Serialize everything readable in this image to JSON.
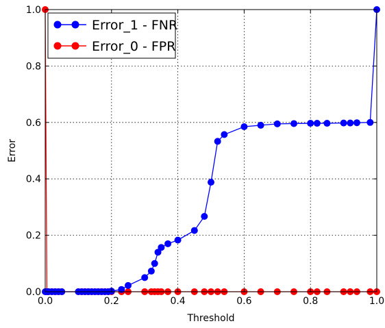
{
  "chart_data": {
    "type": "line",
    "title": "",
    "xlabel": "Threshold",
    "ylabel": "Error",
    "xlim": [
      0.0,
      1.0
    ],
    "ylim": [
      0.0,
      1.0
    ],
    "x_ticks": [
      "0.0",
      "0.2",
      "0.4",
      "0.6",
      "0.8",
      "1.0"
    ],
    "y_ticks": [
      "0.0",
      "0.2",
      "0.4",
      "0.6",
      "0.8",
      "1.0"
    ],
    "grid": true,
    "legend_position": "top-left",
    "series": [
      {
        "name": "Error_1 - FNR",
        "color": "#0000ff",
        "points": [
          [
            0.0,
            0.0
          ],
          [
            0.005,
            0.0
          ],
          [
            0.01,
            0.0
          ],
          [
            0.02,
            0.0
          ],
          [
            0.03,
            0.0
          ],
          [
            0.04,
            0.0
          ],
          [
            0.05,
            0.0
          ],
          [
            0.1,
            0.0
          ],
          [
            0.11,
            0.0
          ],
          [
            0.12,
            0.0
          ],
          [
            0.13,
            0.0
          ],
          [
            0.14,
            0.0
          ],
          [
            0.15,
            0.0
          ],
          [
            0.16,
            0.0
          ],
          [
            0.17,
            0.0
          ],
          [
            0.18,
            0.0
          ],
          [
            0.19,
            0.0
          ],
          [
            0.2,
            0.002
          ],
          [
            0.23,
            0.008
          ],
          [
            0.25,
            0.022
          ],
          [
            0.3,
            0.05
          ],
          [
            0.32,
            0.073
          ],
          [
            0.33,
            0.1
          ],
          [
            0.34,
            0.14
          ],
          [
            0.35,
            0.157
          ],
          [
            0.37,
            0.17
          ],
          [
            0.4,
            0.183
          ],
          [
            0.45,
            0.217
          ],
          [
            0.48,
            0.267
          ],
          [
            0.5,
            0.388
          ],
          [
            0.52,
            0.533
          ],
          [
            0.54,
            0.557
          ],
          [
            0.6,
            0.585
          ],
          [
            0.65,
            0.59
          ],
          [
            0.7,
            0.595
          ],
          [
            0.75,
            0.596
          ],
          [
            0.8,
            0.597
          ],
          [
            0.82,
            0.597
          ],
          [
            0.85,
            0.597
          ],
          [
            0.9,
            0.598
          ],
          [
            0.92,
            0.598
          ],
          [
            0.94,
            0.599
          ],
          [
            0.98,
            0.6
          ],
          [
            1.0,
            1.0
          ]
        ]
      },
      {
        "name": "Error_0 - FPR",
        "color": "#ff0000",
        "points": [
          [
            0.0,
            1.0
          ],
          [
            0.005,
            0.0
          ],
          [
            0.01,
            0.0
          ],
          [
            0.02,
            0.0
          ],
          [
            0.03,
            0.0
          ],
          [
            0.04,
            0.0
          ],
          [
            0.05,
            0.0
          ],
          [
            0.1,
            0.0
          ],
          [
            0.11,
            0.0
          ],
          [
            0.12,
            0.0
          ],
          [
            0.13,
            0.0
          ],
          [
            0.14,
            0.0
          ],
          [
            0.15,
            0.0
          ],
          [
            0.16,
            0.0
          ],
          [
            0.17,
            0.0
          ],
          [
            0.18,
            0.0
          ],
          [
            0.19,
            0.0
          ],
          [
            0.2,
            0.0
          ],
          [
            0.23,
            0.0
          ],
          [
            0.25,
            0.0
          ],
          [
            0.3,
            0.0
          ],
          [
            0.32,
            0.0
          ],
          [
            0.33,
            0.0
          ],
          [
            0.34,
            0.0
          ],
          [
            0.35,
            0.0
          ],
          [
            0.37,
            0.0
          ],
          [
            0.4,
            0.0
          ],
          [
            0.45,
            0.0
          ],
          [
            0.48,
            0.0
          ],
          [
            0.5,
            0.0
          ],
          [
            0.52,
            0.0
          ],
          [
            0.54,
            0.0
          ],
          [
            0.6,
            0.0
          ],
          [
            0.65,
            0.0
          ],
          [
            0.7,
            0.0
          ],
          [
            0.75,
            0.0
          ],
          [
            0.8,
            0.0
          ],
          [
            0.82,
            0.0
          ],
          [
            0.85,
            0.0
          ],
          [
            0.9,
            0.0
          ],
          [
            0.92,
            0.0
          ],
          [
            0.94,
            0.0
          ],
          [
            0.98,
            0.0
          ],
          [
            1.0,
            0.0
          ]
        ]
      }
    ]
  }
}
